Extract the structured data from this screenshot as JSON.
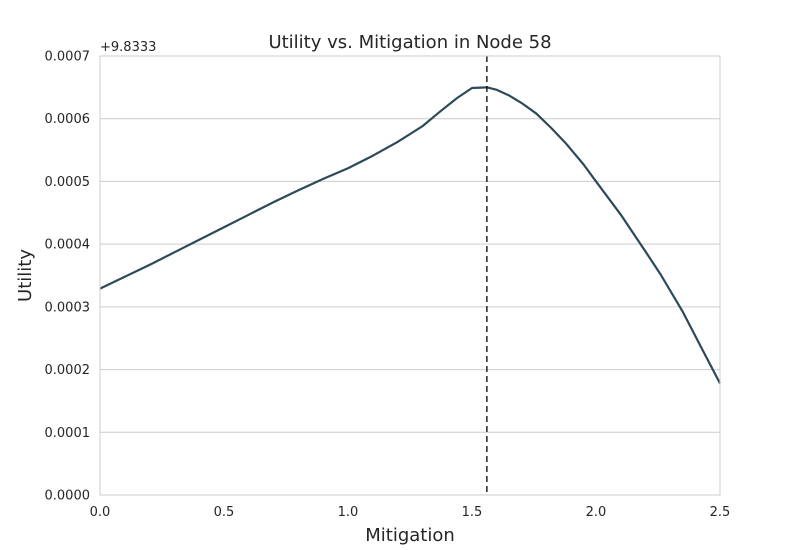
{
  "chart_data": {
    "type": "line",
    "title": "Utility vs. Mitigation in Node 58",
    "xlabel": "Mitigation",
    "ylabel": "Utility",
    "y_offset_label": "+9.8333",
    "xlim": [
      0.0,
      2.5
    ],
    "ylim": [
      0.0,
      0.0007
    ],
    "x_ticks": [
      0.0,
      0.5,
      1.0,
      1.5,
      2.0,
      2.5
    ],
    "x_tick_labels": [
      "0.0",
      "0.5",
      "1.0",
      "1.5",
      "2.0",
      "2.5"
    ],
    "y_ticks": [
      0.0,
      0.0001,
      0.0002,
      0.0003,
      0.0004,
      0.0005,
      0.0006,
      0.0007
    ],
    "y_tick_labels": [
      "0.0000",
      "0.0001",
      "0.0002",
      "0.0003",
      "0.0004",
      "0.0005",
      "0.0006",
      "0.0007"
    ],
    "grid": "horizontal",
    "series": [
      {
        "color": "#2d4a5a",
        "x": [
          0.0,
          0.1,
          0.2,
          0.3,
          0.4,
          0.5,
          0.6,
          0.7,
          0.8,
          0.9,
          1.0,
          1.1,
          1.2,
          1.3,
          1.37,
          1.44,
          1.5,
          1.56,
          1.6,
          1.65,
          1.7,
          1.76,
          1.82,
          1.88,
          1.95,
          2.0,
          2.1,
          2.2,
          2.26,
          2.35,
          2.43,
          2.5
        ],
        "y": [
          0.000329,
          0.000348,
          0.000367,
          0.000387,
          0.000407,
          0.000427,
          0.000447,
          0.000467,
          0.000486,
          0.000504,
          0.000521,
          0.000541,
          0.000563,
          0.000588,
          0.000611,
          0.000633,
          0.000649,
          0.00065,
          0.000646,
          0.000637,
          0.000625,
          0.000608,
          0.000585,
          0.00056,
          0.000527,
          0.0005,
          0.000447,
          0.000388,
          0.000352,
          0.000292,
          0.000231,
          0.000178
        ]
      }
    ],
    "vline": {
      "x": 1.56,
      "style": "dashed",
      "color": "#000000"
    },
    "colors": {
      "grid": "#cccccc",
      "spine": "#cccccc",
      "text": "#262626",
      "line": "#2d4a5a"
    }
  }
}
